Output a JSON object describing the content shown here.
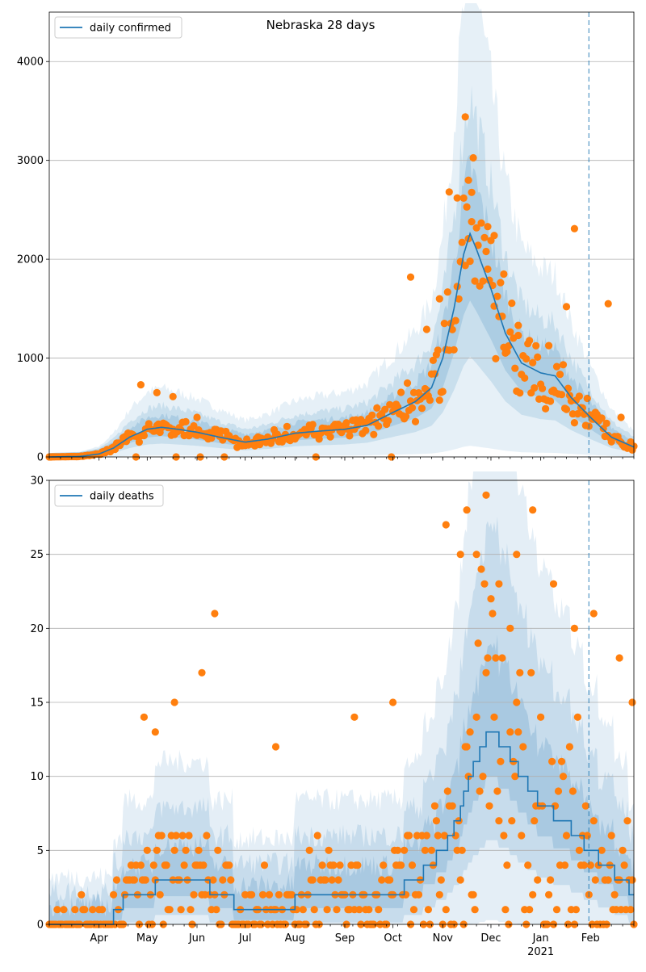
{
  "chart_data": [
    {
      "type": "line",
      "title": "Nebraska 28 days",
      "xlabel": "",
      "ylabel": "",
      "xlim": [
        "2020-03-01",
        "2021-02-28"
      ],
      "ylim": [
        0,
        4500
      ],
      "yticks": [
        0,
        1000,
        2000,
        3000,
        4000
      ],
      "xticks": [
        {
          "label": "Apr",
          "date": "2020-04-01"
        },
        {
          "label": "May",
          "date": "2020-05-01"
        },
        {
          "label": "Jun",
          "date": "2020-06-01"
        },
        {
          "label": "Jul",
          "date": "2020-07-01"
        },
        {
          "label": "Aug",
          "date": "2020-08-01"
        },
        {
          "label": "Sep",
          "date": "2020-09-01"
        },
        {
          "label": "Oct",
          "date": "2020-10-01"
        },
        {
          "label": "Nov",
          "date": "2020-11-01"
        },
        {
          "label": "Dec",
          "date": "2020-12-01"
        },
        {
          "label": "Jan",
          "date": "2021-01-01",
          "sublabel": "2021"
        },
        {
          "label": "Feb",
          "date": "2021-02-01"
        }
      ],
      "grid": "y",
      "legend": {
        "placement": "top-left",
        "entries": [
          "daily confirmed"
        ]
      },
      "vline_date": "2021-01-31",
      "colors": {
        "line": "#1f77b4",
        "points": "#ff7f0e",
        "band": "#1f77b4",
        "vline": "#1f77b4"
      },
      "series": [
        {
          "name": "daily confirmed",
          "kind": "line",
          "keyframes": [
            [
              "2020-03-01",
              0
            ],
            [
              "2020-03-20",
              5
            ],
            [
              "2020-04-01",
              30
            ],
            [
              "2020-04-10",
              90
            ],
            [
              "2020-04-20",
              200
            ],
            [
              "2020-05-01",
              280
            ],
            [
              "2020-05-10",
              300
            ],
            [
              "2020-05-20",
              280
            ],
            [
              "2020-06-01",
              250
            ],
            [
              "2020-06-15",
              200
            ],
            [
              "2020-07-01",
              150
            ],
            [
              "2020-07-15",
              180
            ],
            [
              "2020-08-01",
              240
            ],
            [
              "2020-08-15",
              260
            ],
            [
              "2020-09-01",
              280
            ],
            [
              "2020-09-15",
              320
            ],
            [
              "2020-10-01",
              450
            ],
            [
              "2020-10-15",
              560
            ],
            [
              "2020-10-25",
              700
            ],
            [
              "2020-11-01",
              1000
            ],
            [
              "2020-11-08",
              1500
            ],
            [
              "2020-11-14",
              2050
            ],
            [
              "2020-11-18",
              2260
            ],
            [
              "2020-11-22",
              2100
            ],
            [
              "2020-12-01",
              1700
            ],
            [
              "2020-12-10",
              1250
            ],
            [
              "2020-12-20",
              950
            ],
            [
              "2021-01-01",
              850
            ],
            [
              "2021-01-10",
              820
            ],
            [
              "2021-01-20",
              600
            ],
            [
              "2021-02-01",
              400
            ],
            [
              "2021-02-14",
              200
            ],
            [
              "2021-02-28",
              100
            ]
          ]
        },
        {
          "name": "",
          "kind": "scatter",
          "approx": true,
          "points": [
            [
              "2020-04-27",
              730
            ],
            [
              "2020-05-07",
              650
            ],
            [
              "2020-05-17",
              610
            ],
            [
              "2020-06-01",
              400
            ],
            [
              "2020-10-12",
              1820
            ],
            [
              "2020-10-22",
              1290
            ],
            [
              "2020-10-30",
              1600
            ],
            [
              "2020-11-05",
              2680
            ],
            [
              "2020-11-10",
              2620
            ],
            [
              "2020-11-15",
              3440
            ],
            [
              "2020-11-17",
              2800
            ],
            [
              "2020-11-19",
              2380
            ],
            [
              "2020-11-29",
              2330
            ],
            [
              "2020-12-03",
              2240
            ],
            [
              "2020-12-09",
              1850
            ],
            [
              "2020-12-18",
              1330
            ],
            [
              "2021-01-17",
              1520
            ],
            [
              "2021-01-22",
              2310
            ],
            [
              "2021-02-12",
              1550
            ],
            [
              "2021-02-20",
              400
            ]
          ]
        }
      ]
    },
    {
      "type": "line",
      "title": "",
      "xlabel": "",
      "ylabel": "",
      "xlim": [
        "2020-03-01",
        "2021-02-28"
      ],
      "ylim": [
        0,
        30
      ],
      "yticks": [
        0,
        5,
        10,
        15,
        20,
        25,
        30
      ],
      "xticks": [
        {
          "label": "Apr",
          "date": "2020-04-01"
        },
        {
          "label": "May",
          "date": "2020-05-01"
        },
        {
          "label": "Jun",
          "date": "2020-06-01"
        },
        {
          "label": "Jul",
          "date": "2020-07-01"
        },
        {
          "label": "Aug",
          "date": "2020-08-01"
        },
        {
          "label": "Sep",
          "date": "2020-09-01"
        },
        {
          "label": "Oct",
          "date": "2020-10-01"
        },
        {
          "label": "Nov",
          "date": "2020-11-01"
        },
        {
          "label": "Dec",
          "date": "2020-12-01"
        },
        {
          "label": "Jan",
          "date": "2021-01-01",
          "sublabel": "2021"
        },
        {
          "label": "Feb",
          "date": "2021-02-01"
        }
      ],
      "grid": "y",
      "legend": {
        "placement": "top-left",
        "entries": [
          "daily deaths"
        ]
      },
      "vline_date": "2021-01-31",
      "colors": {
        "line": "#1f77b4",
        "points": "#ff7f0e",
        "band": "#1f77b4",
        "vline": "#1f77b4"
      },
      "series": [
        {
          "name": "daily deaths",
          "kind": "line",
          "keyframes": [
            [
              "2020-03-01",
              0
            ],
            [
              "2020-04-08",
              0
            ],
            [
              "2020-04-12",
              1
            ],
            [
              "2020-04-20",
              2
            ],
            [
              "2020-05-01",
              2
            ],
            [
              "2020-05-10",
              3
            ],
            [
              "2020-06-01",
              3
            ],
            [
              "2020-06-15",
              2
            ],
            [
              "2020-07-01",
              1
            ],
            [
              "2020-07-20",
              1
            ],
            [
              "2020-08-01",
              1.5
            ],
            [
              "2020-08-15",
              2
            ],
            [
              "2020-09-01",
              2
            ],
            [
              "2020-09-20",
              2
            ],
            [
              "2020-10-01",
              2
            ],
            [
              "2020-10-15",
              3
            ],
            [
              "2020-11-01",
              5
            ],
            [
              "2020-11-10",
              7
            ],
            [
              "2020-11-18",
              10
            ],
            [
              "2020-11-25",
              12
            ],
            [
              "2020-12-01",
              13
            ],
            [
              "2020-12-10",
              12
            ],
            [
              "2020-12-20",
              10
            ],
            [
              "2021-01-01",
              8
            ],
            [
              "2021-01-15",
              7
            ],
            [
              "2021-01-31",
              5
            ],
            [
              "2021-02-10",
              4
            ],
            [
              "2021-02-20",
              3
            ],
            [
              "2021-02-28",
              2
            ]
          ]
        },
        {
          "name": "",
          "kind": "scatter",
          "approx": true,
          "points": [
            [
              "2020-04-29",
              14
            ],
            [
              "2020-05-06",
              13
            ],
            [
              "2020-05-18",
              15
            ],
            [
              "2020-06-04",
              17
            ],
            [
              "2020-06-12",
              21
            ],
            [
              "2020-07-20",
              12
            ],
            [
              "2020-09-07",
              14
            ],
            [
              "2020-10-01",
              15
            ],
            [
              "2020-11-03",
              27
            ],
            [
              "2020-11-12",
              25
            ],
            [
              "2020-11-16",
              28
            ],
            [
              "2020-11-22",
              25
            ],
            [
              "2020-11-28",
              29
            ],
            [
              "2020-12-06",
              23
            ],
            [
              "2020-12-13",
              20
            ],
            [
              "2020-12-17",
              25
            ],
            [
              "2020-12-27",
              28
            ],
            [
              "2021-01-09",
              23
            ],
            [
              "2021-01-22",
              20
            ],
            [
              "2021-02-03",
              21
            ],
            [
              "2021-02-19",
              18
            ],
            [
              "2021-02-27",
              15
            ]
          ]
        }
      ]
    }
  ]
}
